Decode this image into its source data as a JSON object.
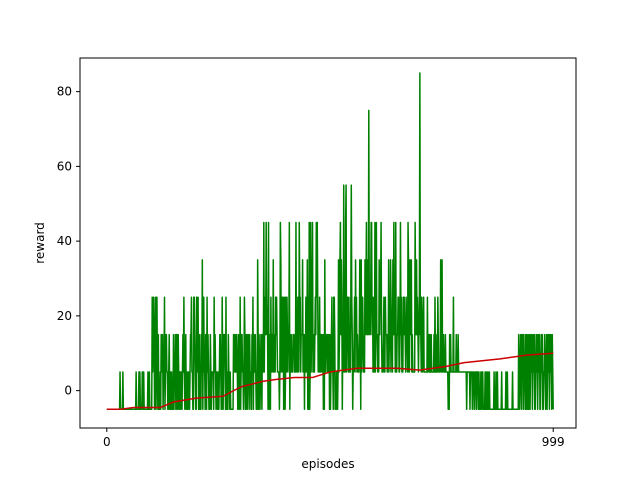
{
  "chart_data": {
    "type": "line",
    "title": "",
    "xlabel": "episodes",
    "ylabel": "reward",
    "xlim": [
      -60,
      1050
    ],
    "ylim": [
      -10,
      89
    ],
    "xticks": [
      0,
      999
    ],
    "xtick_labels": [
      "0",
      "999"
    ],
    "yticks": [
      0,
      20,
      40,
      60,
      80
    ],
    "ytick_labels": [
      "0",
      "20",
      "40",
      "60",
      "80"
    ],
    "grid": false,
    "legend": "none",
    "series": [
      {
        "color": "#008000",
        "kind": "per-episode reward",
        "x_range": [
          0,
          999
        ],
        "values": [
          -5,
          -5,
          -5,
          -5,
          -5,
          -5,
          -5,
          -5,
          -5,
          -5,
          -5,
          -5,
          -5,
          -5,
          -5,
          -5,
          -5,
          -5,
          -5,
          -5,
          -5,
          -5,
          -5,
          -5,
          -5,
          -5,
          -5,
          -5,
          5,
          -5,
          -5,
          -5,
          -5,
          -5,
          5,
          -5,
          -5,
          -5,
          -5,
          -5,
          -5,
          -5,
          -5,
          -5,
          -5,
          -5,
          -5,
          -5,
          -5,
          -5,
          -5,
          -5,
          -5,
          -5,
          -5,
          -5,
          -5,
          -5,
          -5,
          -5,
          -5,
          -5,
          5,
          -5,
          -5,
          -5,
          -5,
          -5,
          5,
          -5,
          5,
          -5,
          -5,
          -5,
          -5,
          5,
          5,
          -5,
          5,
          -5,
          -5,
          -5,
          -5,
          -5,
          -5,
          -5,
          -5,
          5,
          -5,
          -5,
          5,
          -5,
          -5,
          -5,
          -5,
          -5,
          25,
          5,
          15,
          25,
          15,
          -5,
          5,
          25,
          -5,
          5,
          25,
          5,
          -5,
          15,
          -5,
          -5,
          -5,
          5,
          -5,
          15,
          5,
          5,
          15,
          -5,
          5,
          5,
          25,
          -5,
          5,
          15,
          15,
          5,
          5,
          -5,
          -5,
          5,
          15,
          -5,
          -5,
          5,
          -5,
          5,
          -5,
          -5,
          -5,
          15,
          -5,
          5,
          5,
          15,
          -5,
          15,
          15,
          -5,
          -5,
          15,
          5,
          -5,
          5,
          5,
          -5,
          5,
          5,
          -5,
          5,
          15,
          5,
          25,
          5,
          -5,
          5,
          15,
          -5,
          5,
          5,
          -5,
          -5,
          5,
          5,
          -5,
          5,
          15,
          15,
          25,
          5,
          5,
          -5,
          -5,
          25,
          25,
          15,
          5,
          -5,
          -5,
          25,
          5,
          15,
          25,
          -5,
          -5,
          15,
          -5,
          5,
          -5,
          15,
          5,
          35,
          -5,
          15,
          25,
          5,
          5,
          -5,
          15,
          5,
          -5,
          25,
          5,
          15,
          5,
          -5,
          -5,
          -5,
          15,
          5,
          -5,
          5,
          5,
          5,
          5,
          -5,
          25,
          5,
          15,
          5,
          -5,
          5,
          5,
          -5,
          -5,
          5,
          -5,
          5,
          15,
          15,
          5,
          -5,
          -5,
          25,
          5,
          -5,
          15,
          15,
          15,
          5,
          -5,
          25,
          -5,
          5,
          -5,
          -5,
          15,
          5,
          5,
          -5,
          5,
          -5,
          -5,
          -5,
          -5,
          -5,
          -5,
          15,
          5,
          15,
          5,
          5,
          15,
          5,
          15,
          5,
          -5,
          5,
          15,
          -5,
          -5,
          25,
          -5,
          5,
          15,
          15,
          5,
          5,
          -5,
          5,
          25,
          15,
          -5,
          -5,
          15,
          5,
          -5,
          15,
          15,
          5,
          -5,
          15,
          5,
          5,
          -5,
          -5,
          15,
          5,
          25,
          -5,
          15,
          5,
          5,
          15,
          5,
          -5,
          5,
          -5,
          35,
          15,
          -5,
          15,
          5,
          -5,
          5,
          15,
          5,
          -5,
          15,
          5,
          5,
          45,
          5,
          25,
          15,
          15,
          45,
          25,
          15,
          15,
          -5,
          45,
          -5,
          5,
          15,
          -5,
          25,
          5,
          15,
          15,
          5,
          35,
          5,
          5,
          15,
          5,
          25,
          15,
          25,
          15,
          5,
          5,
          5,
          5,
          -5,
          5,
          45,
          35,
          5,
          25,
          25,
          5,
          25,
          -5,
          15,
          25,
          -5,
          5,
          25,
          5,
          25,
          15,
          5,
          15,
          15,
          45,
          -5,
          15,
          5,
          15,
          5,
          5,
          5,
          15,
          15,
          15,
          5,
          5,
          5,
          45,
          5,
          15,
          5,
          25,
          15,
          5,
          45,
          25,
          25,
          5,
          15,
          15,
          15,
          35,
          5,
          15,
          15,
          -5,
          15,
          5,
          25,
          5,
          5,
          35,
          -5,
          25,
          -5,
          45,
          -5,
          5,
          45,
          5,
          15,
          25,
          45,
          5,
          15,
          5,
          5,
          15,
          25,
          15,
          45,
          25,
          45,
          25,
          5,
          15,
          5,
          25,
          5,
          5,
          15,
          15,
          5,
          5,
          15,
          -5,
          15,
          -5,
          35,
          5,
          15,
          15,
          15,
          5,
          15,
          5,
          5,
          15,
          -5,
          15,
          -5,
          5,
          15,
          25,
          5,
          5,
          -5,
          25,
          25,
          15,
          -5,
          -5,
          -5,
          5,
          5,
          -5,
          5,
          35,
          5,
          15,
          35,
          45,
          15,
          35,
          25,
          -5,
          15,
          5,
          55,
          5,
          5,
          5,
          45,
          55,
          5,
          25,
          25,
          15,
          5,
          25,
          5,
          15,
          5,
          25,
          55,
          25,
          15,
          -5,
          5,
          5,
          15,
          25,
          5,
          35,
          15,
          25,
          5,
          15,
          5,
          5,
          5,
          15,
          35,
          15,
          -5,
          35,
          5,
          15,
          25,
          15,
          5,
          5,
          5,
          35,
          15,
          25,
          45,
          15,
          15,
          35,
          15,
          75,
          25,
          15,
          15,
          25,
          45,
          45,
          15,
          25,
          5,
          5,
          25,
          5,
          45,
          5,
          15,
          45,
          15,
          15,
          5,
          15,
          5,
          35,
          15,
          25,
          25,
          45,
          15,
          5,
          5,
          5,
          15,
          25,
          5,
          5,
          25,
          15,
          15,
          15,
          5,
          15,
          5,
          35,
          15,
          15,
          5,
          35,
          25,
          15,
          5,
          5,
          35,
          15,
          45,
          15,
          25,
          5,
          45,
          5,
          5,
          15,
          15,
          25,
          25,
          5,
          5,
          15,
          45,
          15,
          25,
          5,
          15,
          5,
          25,
          15,
          25,
          15,
          15,
          5,
          25,
          15,
          15,
          5,
          45,
          35,
          5,
          5,
          35,
          15,
          15,
          35,
          5,
          15,
          5,
          5,
          5,
          5,
          5,
          45,
          25,
          15,
          35,
          15,
          25,
          15,
          5,
          15,
          25,
          85,
          15,
          15,
          5,
          25,
          15,
          5,
          15,
          25,
          5,
          5,
          5,
          5,
          5,
          5,
          5,
          25,
          5,
          15,
          15,
          5,
          15,
          5,
          5,
          15,
          5,
          5,
          5,
          5,
          5,
          15,
          5,
          25,
          5,
          15,
          5,
          5,
          5,
          25,
          15,
          5,
          5,
          5,
          5,
          35,
          25,
          5,
          35,
          5,
          15,
          15,
          5,
          5,
          5,
          15,
          5,
          5,
          5,
          5,
          5,
          -5,
          5,
          -5,
          15,
          5,
          15,
          5,
          5,
          5,
          5,
          5,
          25,
          5,
          5,
          5,
          5,
          5,
          15,
          5,
          5,
          5,
          15,
          5,
          5,
          5,
          5,
          5,
          5,
          5,
          5,
          5,
          5,
          5,
          5,
          5,
          5,
          5,
          5,
          5,
          -5,
          5,
          5,
          5,
          5,
          5,
          5,
          -5,
          5,
          5,
          5,
          5,
          -5,
          5,
          5,
          5,
          -5,
          -5,
          5,
          5,
          5,
          -5,
          5,
          5,
          5,
          -5,
          5,
          -5,
          -5,
          -5,
          5,
          5,
          -5,
          5,
          5,
          -5,
          -5,
          -5,
          -5,
          5,
          -5,
          5,
          -5,
          -5,
          5,
          -5,
          -5,
          5,
          5,
          -5,
          -5,
          -5,
          -5,
          -5,
          -5,
          -5,
          -5,
          -5,
          5,
          -5,
          -5,
          -5,
          5,
          -5,
          -5,
          5,
          -5,
          -5,
          -5,
          -5,
          -5,
          -5,
          -5,
          -5,
          5,
          -5,
          -5,
          -5,
          -5,
          -5,
          -5,
          -5,
          -5,
          5,
          -5,
          -5,
          5,
          -5,
          -5,
          -5,
          -5,
          -5,
          -5,
          -5,
          -5,
          -5,
          -5,
          5,
          -5,
          -5,
          -5,
          -5,
          -5,
          -5,
          -5,
          -5,
          -5,
          -5,
          -5,
          -5,
          15,
          5,
          -5,
          5,
          15,
          5,
          -5,
          15,
          5,
          15,
          -5,
          15,
          5,
          5,
          -5,
          15,
          -5,
          15,
          -5,
          5,
          15,
          -5,
          -5,
          15,
          -5,
          5,
          15,
          5,
          15,
          -5,
          5,
          15,
          5,
          15,
          -5,
          -5,
          5,
          15,
          5,
          15,
          -5,
          5,
          15,
          5,
          15,
          -5,
          -5,
          5,
          15,
          5,
          15,
          -5,
          -5,
          5,
          5,
          15,
          5,
          -5,
          5,
          15,
          -5,
          5,
          15,
          5,
          15,
          -5,
          15,
          5,
          15,
          5,
          -5,
          15,
          5,
          -5
        ]
      },
      {
        "color": "#cc0000",
        "kind": "running mean reward",
        "x": [
          0,
          30,
          60,
          120,
          150,
          200,
          260,
          300,
          350,
          380,
          420,
          460,
          500,
          560,
          600,
          650,
          700,
          760,
          800,
          880,
          940,
          999
        ],
        "values": [
          -5,
          -5,
          -4.5,
          -4.5,
          -3,
          -2,
          -1.5,
          1,
          2.5,
          3,
          3.5,
          3.5,
          5,
          6,
          6,
          6,
          5.5,
          6.5,
          7.5,
          8.5,
          9.5,
          10
        ]
      }
    ]
  }
}
